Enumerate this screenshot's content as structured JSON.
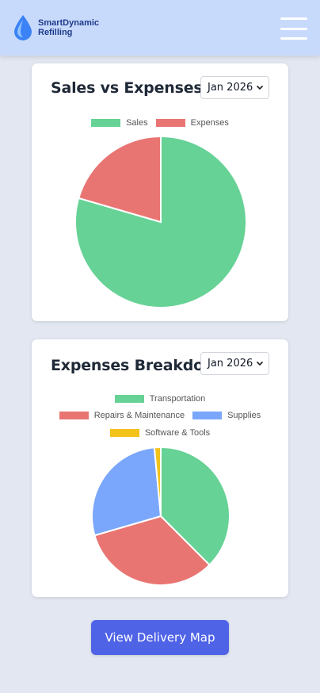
{
  "header": {
    "brand_line1": "SmartDynamic",
    "brand_line2": "Refilling",
    "icons": {
      "logo": "water-drop-icon",
      "menu": "hamburger-menu-icon"
    },
    "colors": {
      "header_bg": "#c8dafc",
      "brand_text": "#1e3a8a"
    }
  },
  "sales_card": {
    "title": "Sales vs Expenses",
    "month": "Jan 2026"
  },
  "expenses_card": {
    "title": "Expenses Breakdown",
    "month": "Jan 2026"
  },
  "cta": {
    "label": "View Delivery Map",
    "color": "#4f63e7"
  },
  "chart_data": [
    {
      "type": "pie",
      "legend_position": "top",
      "categories": [
        "Sales",
        "Expenses"
      ],
      "values": [
        79.5,
        20.5
      ],
      "colors": [
        "#66d296",
        "#e97573"
      ]
    },
    {
      "type": "pie",
      "legend_position": "top",
      "categories": [
        "Transportation",
        "Repairs & Maintenance",
        "Supplies",
        "Software & Tools"
      ],
      "values": [
        37.5,
        33.0,
        28.0,
        1.5
      ],
      "colors": [
        "#66d296",
        "#e97573",
        "#7aa7fb",
        "#f3c21b"
      ]
    }
  ]
}
